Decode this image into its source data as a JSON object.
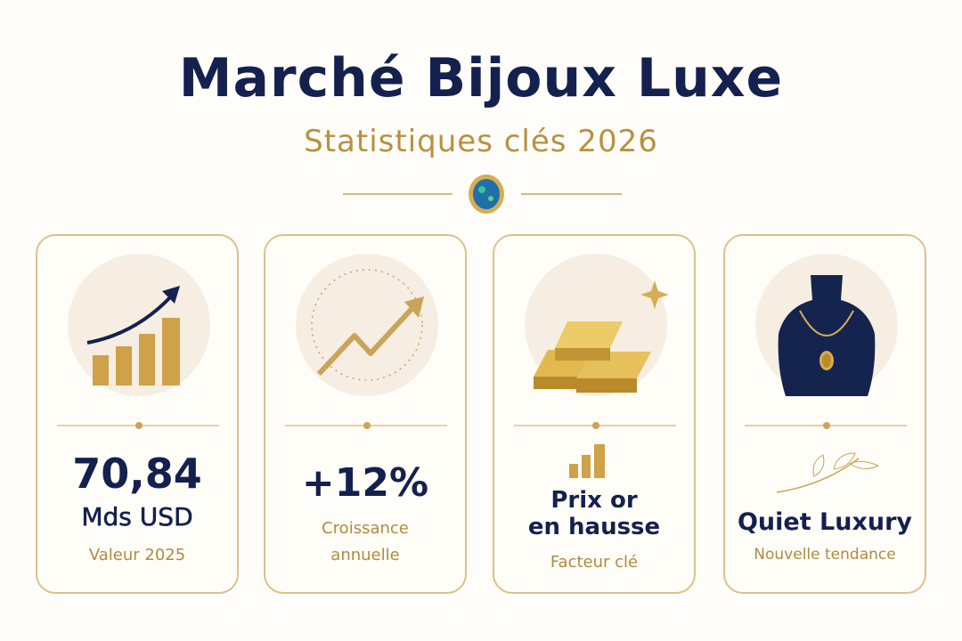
{
  "header": {
    "title": "Marché Bijoux Luxe",
    "subtitle": "Statistiques clés 2026"
  },
  "cards": [
    {
      "lines": [
        "70,84",
        "Mds USD"
      ],
      "caption": [
        "Valeur 2025"
      ]
    },
    {
      "lines": [
        "+12%"
      ],
      "caption": [
        "Croissance",
        "annuelle"
      ]
    },
    {
      "lines": [
        "Prix or",
        "en hausse"
      ],
      "caption": [
        "Facteur clé"
      ]
    },
    {
      "lines": [
        "Quiet Luxury"
      ],
      "caption": [
        "Nouvelle tendance"
      ]
    }
  ]
}
